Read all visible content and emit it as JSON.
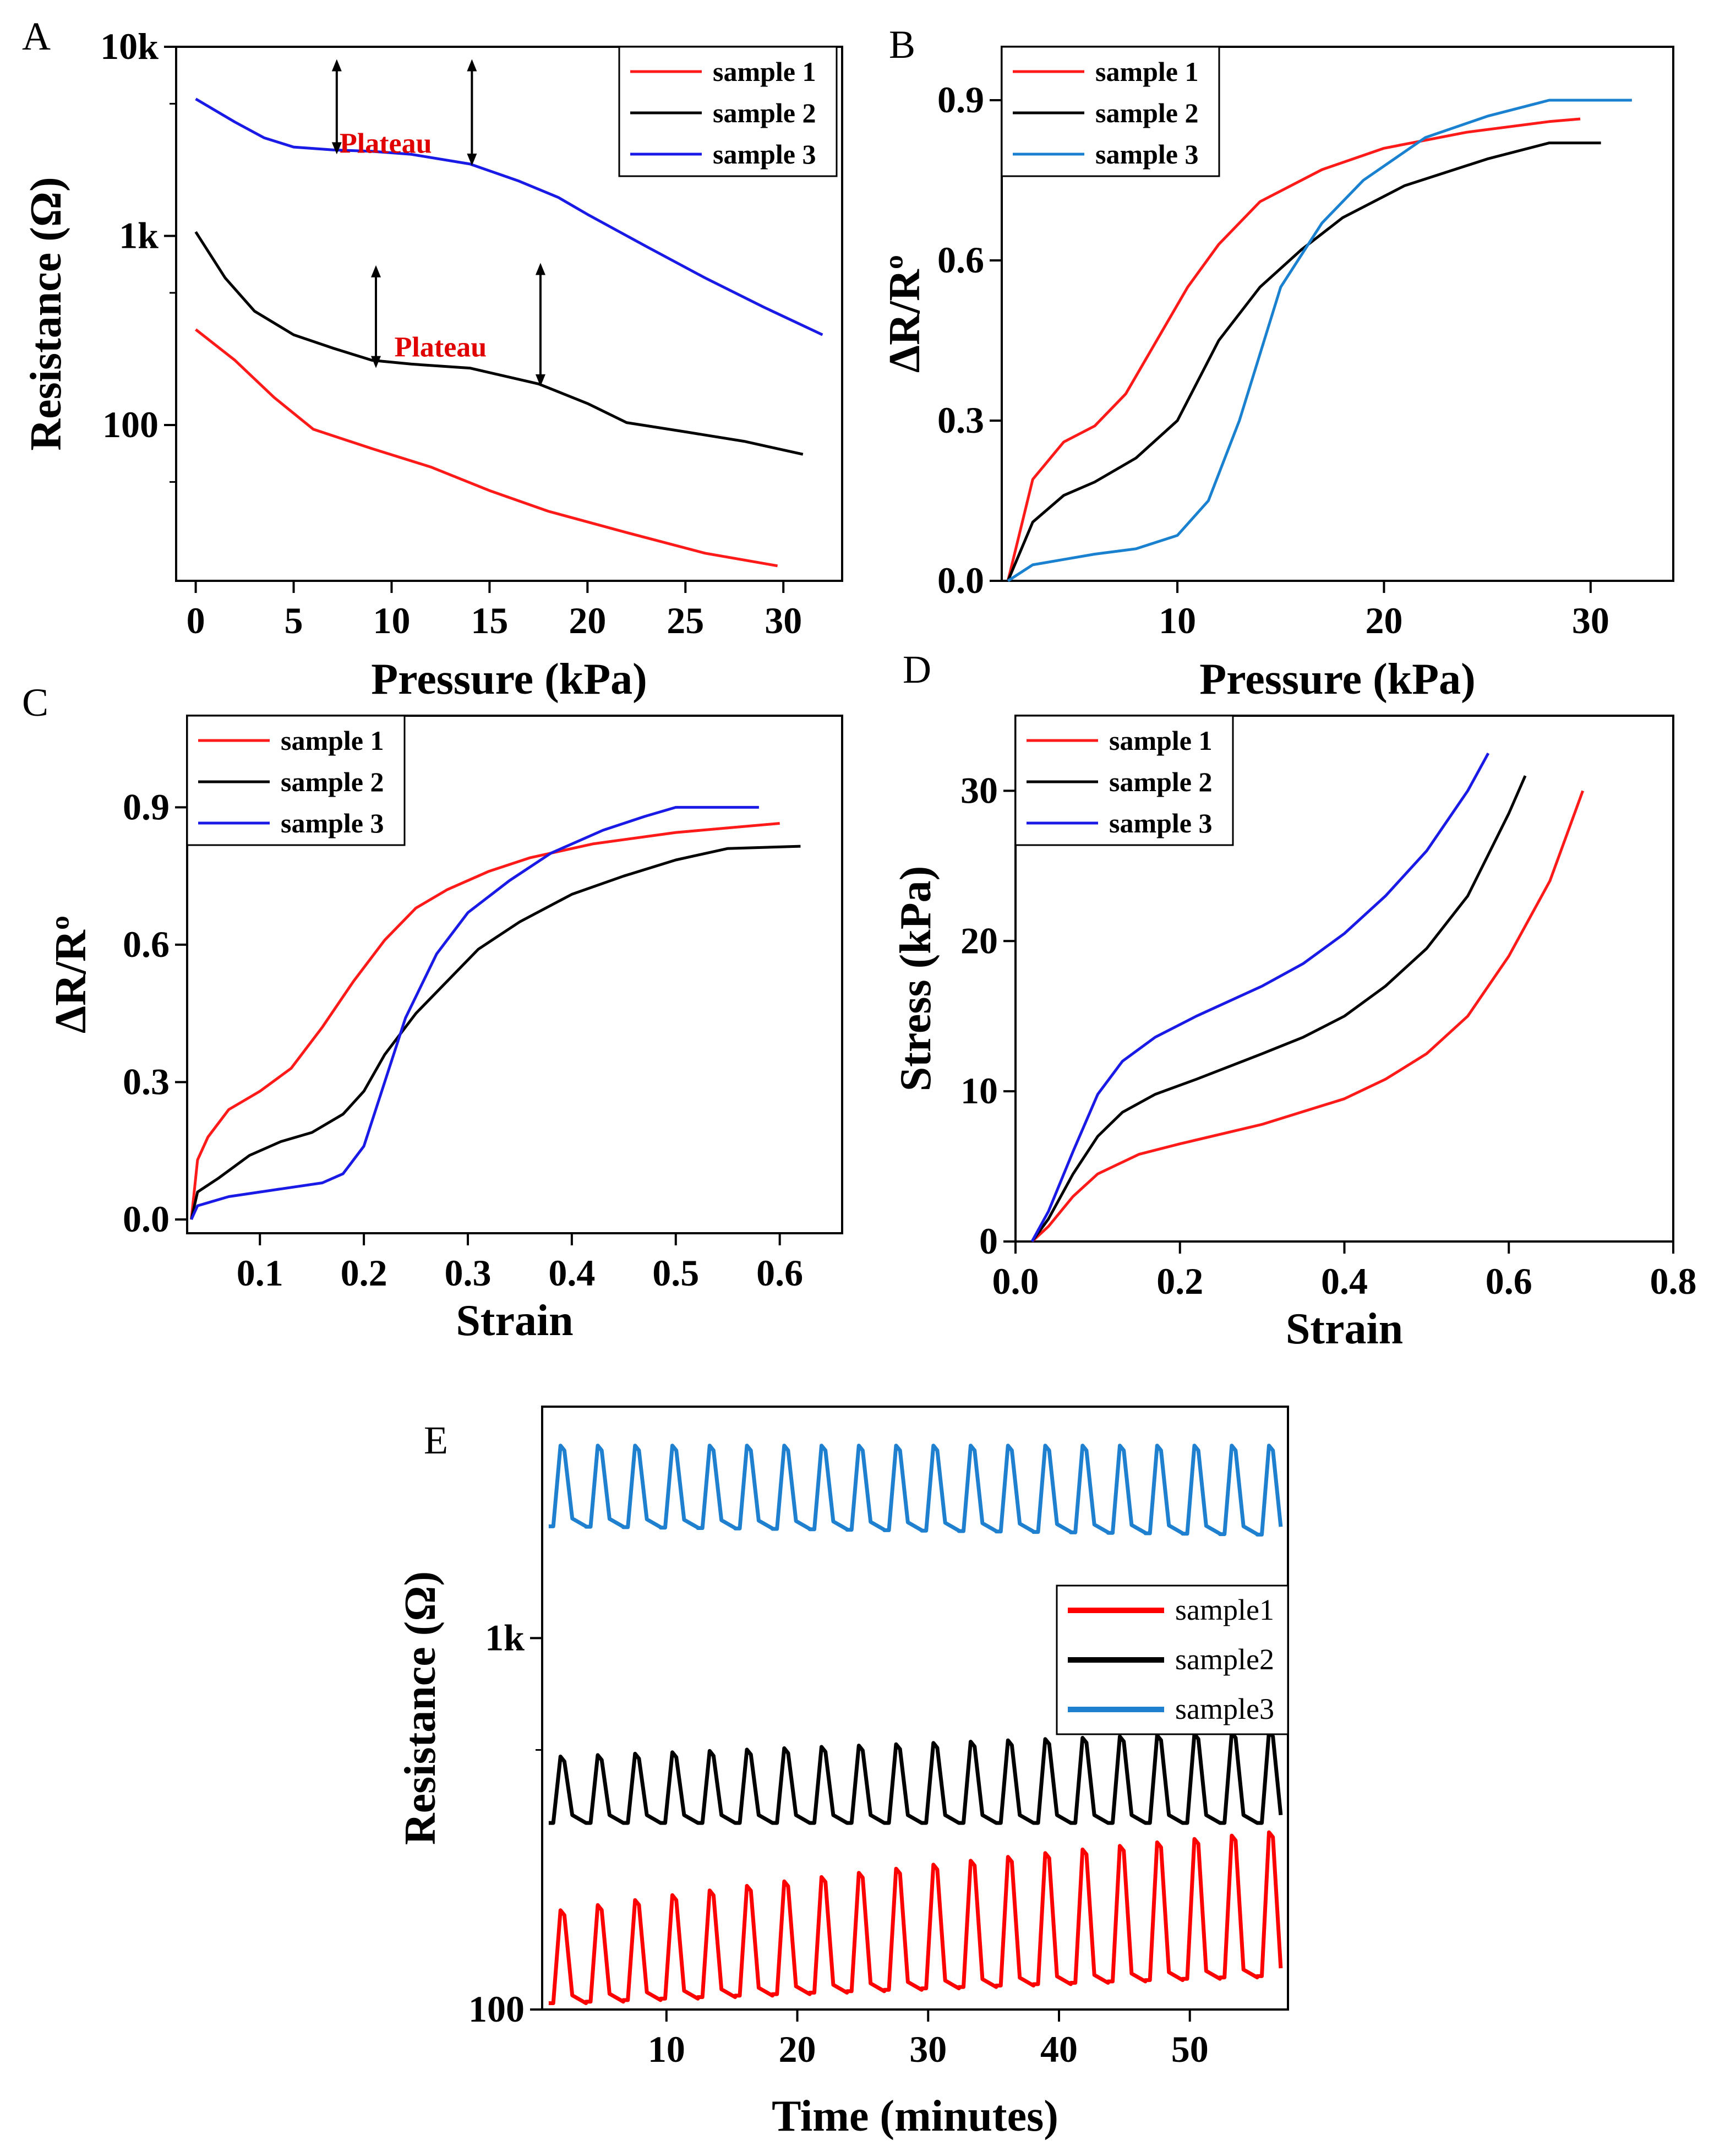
{
  "chart_data": [
    {
      "panel": "A",
      "type": "line",
      "xlabel": "Pressure (kPa)",
      "ylabel": "Resistance (Ω)",
      "yscale": "log",
      "xlim": [
        -1,
        33
      ],
      "ylim": [
        15,
        10000
      ],
      "xticks": [
        0,
        5,
        10,
        15,
        20,
        25,
        30
      ],
      "xtick_labels": [
        "0",
        "5",
        "10",
        "15",
        "20",
        "25",
        "30"
      ],
      "yticks": [
        100,
        1000,
        10000
      ],
      "ytick_labels": [
        "100",
        "1k",
        "10k"
      ],
      "legend_position": "top-right",
      "series": [
        {
          "name": "sample 1",
          "color": "#ff1a1a",
          "x": [
            0,
            2,
            4,
            6,
            9,
            12,
            15,
            18,
            22,
            26,
            29.7
          ],
          "y": [
            320,
            220,
            140,
            95,
            75,
            60,
            45,
            35,
            27,
            21,
            18
          ]
        },
        {
          "name": "sample 2",
          "color": "#000000",
          "x": [
            0,
            1.5,
            3,
            5,
            7,
            9,
            11,
            14,
            17.5,
            20,
            22,
            25,
            28,
            31
          ],
          "y": [
            1050,
            600,
            400,
            300,
            255,
            220,
            210,
            200,
            165,
            130,
            103,
            92,
            82,
            70
          ]
        },
        {
          "name": "sample 3",
          "color": "#1a1ae6",
          "x": [
            0,
            2,
            3.5,
            5,
            7,
            9,
            11,
            14,
            16.5,
            18.5,
            20,
            23,
            26,
            29,
            32
          ],
          "y": [
            5300,
            4000,
            3300,
            2950,
            2850,
            2800,
            2700,
            2400,
            1950,
            1600,
            1300,
            880,
            600,
            420,
            300
          ]
        }
      ],
      "annotations": [
        {
          "text": "Plateau",
          "x": 9.7,
          "y": 2750,
          "color": "#e00000"
        },
        {
          "text": "Plateau",
          "x": 12.5,
          "y": 230,
          "color": "#e00000"
        }
      ],
      "plateau_markers": [
        {
          "x": 7.2,
          "y_low": 2700,
          "y_high": 8600
        },
        {
          "x": 14.1,
          "y_low": 2350,
          "y_high": 8600
        },
        {
          "x": 9.2,
          "y_low": 200,
          "y_high": 700
        },
        {
          "x": 17.6,
          "y_low": 160,
          "y_high": 720
        }
      ]
    },
    {
      "panel": "B",
      "type": "line",
      "xlabel": "Pressure (kPa)",
      "ylabel": "ΔR/Rº",
      "xlim": [
        1.5,
        34
      ],
      "ylim": [
        0,
        1.0
      ],
      "xticks": [
        10,
        20,
        30
      ],
      "xtick_labels": [
        "10",
        "20",
        "30"
      ],
      "yticks": [
        0,
        0.3,
        0.6,
        0.9
      ],
      "ytick_labels": [
        "0.0",
        "0.3",
        "0.6",
        "0.9"
      ],
      "legend_position": "top-left",
      "series": [
        {
          "name": "sample 1",
          "color": "#ff1a1a",
          "x": [
            1.8,
            3,
            4.5,
            6,
            7.5,
            9,
            10.5,
            12,
            14,
            17,
            20,
            24,
            28,
            29.5
          ],
          "y": [
            0,
            0.19,
            0.26,
            0.29,
            0.35,
            0.45,
            0.55,
            0.63,
            0.71,
            0.77,
            0.81,
            0.84,
            0.86,
            0.865
          ]
        },
        {
          "name": "sample 2",
          "color": "#000000",
          "x": [
            1.8,
            3,
            4.5,
            6,
            8,
            10,
            12,
            14,
            16,
            18,
            21,
            25,
            28,
            30.5
          ],
          "y": [
            0,
            0.11,
            0.16,
            0.185,
            0.23,
            0.3,
            0.45,
            0.55,
            0.62,
            0.68,
            0.74,
            0.79,
            0.82,
            0.82
          ]
        },
        {
          "name": "sample 3",
          "color": "#1a80d0",
          "x": [
            1.8,
            3,
            4.5,
            6,
            8,
            10,
            11.5,
            13,
            15,
            17,
            19,
            22,
            25,
            28,
            32
          ],
          "y": [
            0,
            0.03,
            0.04,
            0.05,
            0.06,
            0.085,
            0.15,
            0.3,
            0.55,
            0.67,
            0.75,
            0.83,
            0.87,
            0.9,
            0.9
          ]
        }
      ]
    },
    {
      "panel": "C",
      "type": "line",
      "xlabel": "Strain",
      "ylabel": "ΔR/Rº",
      "xlim": [
        0.03,
        0.66
      ],
      "ylim": [
        -0.03,
        1.1
      ],
      "xticks": [
        0.1,
        0.2,
        0.3,
        0.4,
        0.5,
        0.6
      ],
      "xtick_labels": [
        "0.1",
        "0.2",
        "0.3",
        "0.4",
        "0.5",
        "0.6"
      ],
      "yticks": [
        0,
        0.3,
        0.6,
        0.9
      ],
      "ytick_labels": [
        "0.0",
        "0.3",
        "0.6",
        "0.9"
      ],
      "legend_position": "top-left",
      "series": [
        {
          "name": "sample 1",
          "color": "#ff1a1a",
          "x": [
            0.034,
            0.04,
            0.05,
            0.07,
            0.1,
            0.13,
            0.16,
            0.19,
            0.22,
            0.25,
            0.28,
            0.32,
            0.36,
            0.42,
            0.5,
            0.6
          ],
          "y": [
            0,
            0.13,
            0.18,
            0.24,
            0.28,
            0.33,
            0.42,
            0.52,
            0.61,
            0.68,
            0.72,
            0.76,
            0.79,
            0.82,
            0.845,
            0.865
          ]
        },
        {
          "name": "sample 2",
          "color": "#000000",
          "x": [
            0.034,
            0.04,
            0.06,
            0.09,
            0.12,
            0.15,
            0.18,
            0.2,
            0.22,
            0.25,
            0.28,
            0.31,
            0.35,
            0.4,
            0.45,
            0.5,
            0.55,
            0.62
          ],
          "y": [
            0,
            0.06,
            0.09,
            0.14,
            0.17,
            0.19,
            0.23,
            0.28,
            0.36,
            0.45,
            0.52,
            0.59,
            0.65,
            0.71,
            0.75,
            0.785,
            0.81,
            0.815
          ]
        },
        {
          "name": "sample 3",
          "color": "#1a1ae6",
          "x": [
            0.034,
            0.04,
            0.07,
            0.1,
            0.13,
            0.16,
            0.18,
            0.2,
            0.22,
            0.24,
            0.27,
            0.3,
            0.34,
            0.38,
            0.43,
            0.47,
            0.5,
            0.58
          ],
          "y": [
            0,
            0.03,
            0.05,
            0.06,
            0.07,
            0.08,
            0.1,
            0.16,
            0.3,
            0.44,
            0.58,
            0.67,
            0.74,
            0.8,
            0.85,
            0.88,
            0.9,
            0.9
          ]
        }
      ]
    },
    {
      "panel": "D",
      "type": "line",
      "xlabel": "Strain",
      "ylabel": "Stress (kPa)",
      "xlim": [
        0,
        0.8
      ],
      "ylim": [
        0,
        35
      ],
      "xticks": [
        0,
        0.2,
        0.4,
        0.6,
        0.8
      ],
      "xtick_labels": [
        "0.0",
        "0.2",
        "0.4",
        "0.6",
        "0.8"
      ],
      "yticks": [
        0,
        10,
        20,
        30
      ],
      "ytick_labels": [
        "0",
        "10",
        "20",
        "30"
      ],
      "legend_position": "top-left",
      "series": [
        {
          "name": "sample 1",
          "color": "#ff1a1a",
          "x": [
            0.02,
            0.04,
            0.07,
            0.1,
            0.15,
            0.2,
            0.3,
            0.4,
            0.45,
            0.5,
            0.55,
            0.6,
            0.65,
            0.69
          ],
          "y": [
            0,
            1,
            3,
            4.5,
            5.8,
            6.5,
            7.8,
            9.5,
            10.8,
            12.5,
            15,
            19,
            24,
            30
          ]
        },
        {
          "name": "sample 2",
          "color": "#000000",
          "x": [
            0.02,
            0.04,
            0.07,
            0.1,
            0.13,
            0.17,
            0.22,
            0.3,
            0.35,
            0.4,
            0.45,
            0.5,
            0.55,
            0.6,
            0.62
          ],
          "y": [
            0,
            1.5,
            4.5,
            7,
            8.6,
            9.8,
            10.8,
            12.5,
            13.6,
            15,
            17,
            19.5,
            23,
            28.5,
            31
          ]
        },
        {
          "name": "sample 3",
          "color": "#1a1ae6",
          "x": [
            0.02,
            0.04,
            0.07,
            0.1,
            0.13,
            0.17,
            0.22,
            0.3,
            0.35,
            0.4,
            0.45,
            0.5,
            0.55,
            0.575
          ],
          "y": [
            0,
            2,
            6,
            9.8,
            12,
            13.6,
            15,
            17,
            18.5,
            20.5,
            23,
            26,
            30,
            32.5
          ]
        }
      ]
    },
    {
      "panel": "E",
      "type": "line",
      "xlabel": "Time (minutes)",
      "ylabel": "Resistance (Ω)",
      "yscale": "log",
      "xlim": [
        0.5,
        57.5
      ],
      "ylim": [
        100,
        4200
      ],
      "xticks": [
        10,
        20,
        30,
        40,
        50
      ],
      "xtick_labels": [
        "10",
        "20",
        "30",
        "40",
        "50"
      ],
      "yticks": [
        100,
        1000
      ],
      "ytick_labels": [
        "100",
        "1k"
      ],
      "legend_position": "center-right",
      "cycle_period_min": 2.85,
      "cycles": 20,
      "series": [
        {
          "name": "sample1",
          "color": "#ff0000",
          "baseline_start": 104,
          "baseline_end": 123,
          "peak_start": 185,
          "peak_end": 300
        },
        {
          "name": "sample2",
          "color": "#000000",
          "baseline_start": 318,
          "baseline_end": 318,
          "peak_start": 480,
          "peak_end": 560
        },
        {
          "name": "sample3",
          "color": "#1f80d0",
          "baseline_start": 2000,
          "baseline_end": 1900,
          "peak_start": 3300,
          "peak_end": 3300
        }
      ]
    }
  ]
}
